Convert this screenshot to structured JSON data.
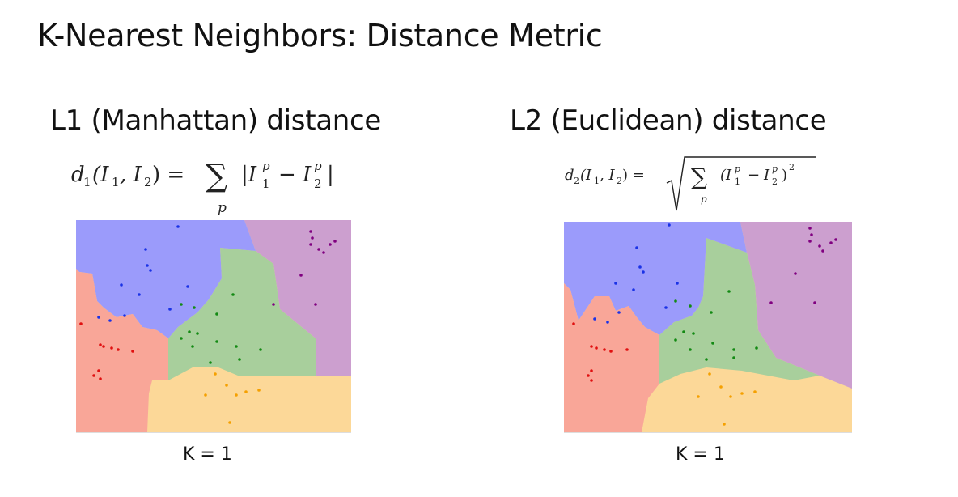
{
  "slide": {
    "title": "K-Nearest Neighbors: Distance Metric"
  },
  "left": {
    "heading": "L1 (Manhattan) distance",
    "formula": {
      "lhs": "d",
      "lhs_sub": "1",
      "args": "(I",
      "args_sub1": "1",
      "args_mid": ", I",
      "args_sub2": "2",
      "args_end": ") =",
      "sum": "∑",
      "sum_index": "p",
      "body_a": "|I",
      "body_a_sup": "p",
      "body_a_sub": "1",
      "minus": "−",
      "body_b": "I",
      "body_b_sup": "p",
      "body_b_sub": "2",
      "body_end": "|"
    },
    "k_label": "K = 1"
  },
  "right": {
    "heading": "L2 (Euclidean) distance",
    "formula": {
      "lhs": "d",
      "lhs_sub": "2",
      "args": "(I",
      "args_sub1": "1",
      "args_mid": ", I",
      "args_sub2": "2",
      "args_end": ") =",
      "sum": "∑",
      "sum_index": "p",
      "open": "(I",
      "a_sup": "p",
      "a_sub": "1",
      "minus": "−",
      "b": "I",
      "b_sup": "p",
      "b_sub": "2",
      "close": ")",
      "power": "2"
    },
    "k_label": "K = 1"
  },
  "colors": {
    "blue_region": "#9b9bfb",
    "purple_region": "#cc9fcf",
    "green_region": "#a8cf9c",
    "red_region": "#f9a698",
    "orange_region": "#fcd898",
    "blue_point": "#1a32e6",
    "purple_point": "#800080",
    "green_point": "#138a13",
    "red_point": "#e01010",
    "orange_point": "#f5a000"
  }
}
